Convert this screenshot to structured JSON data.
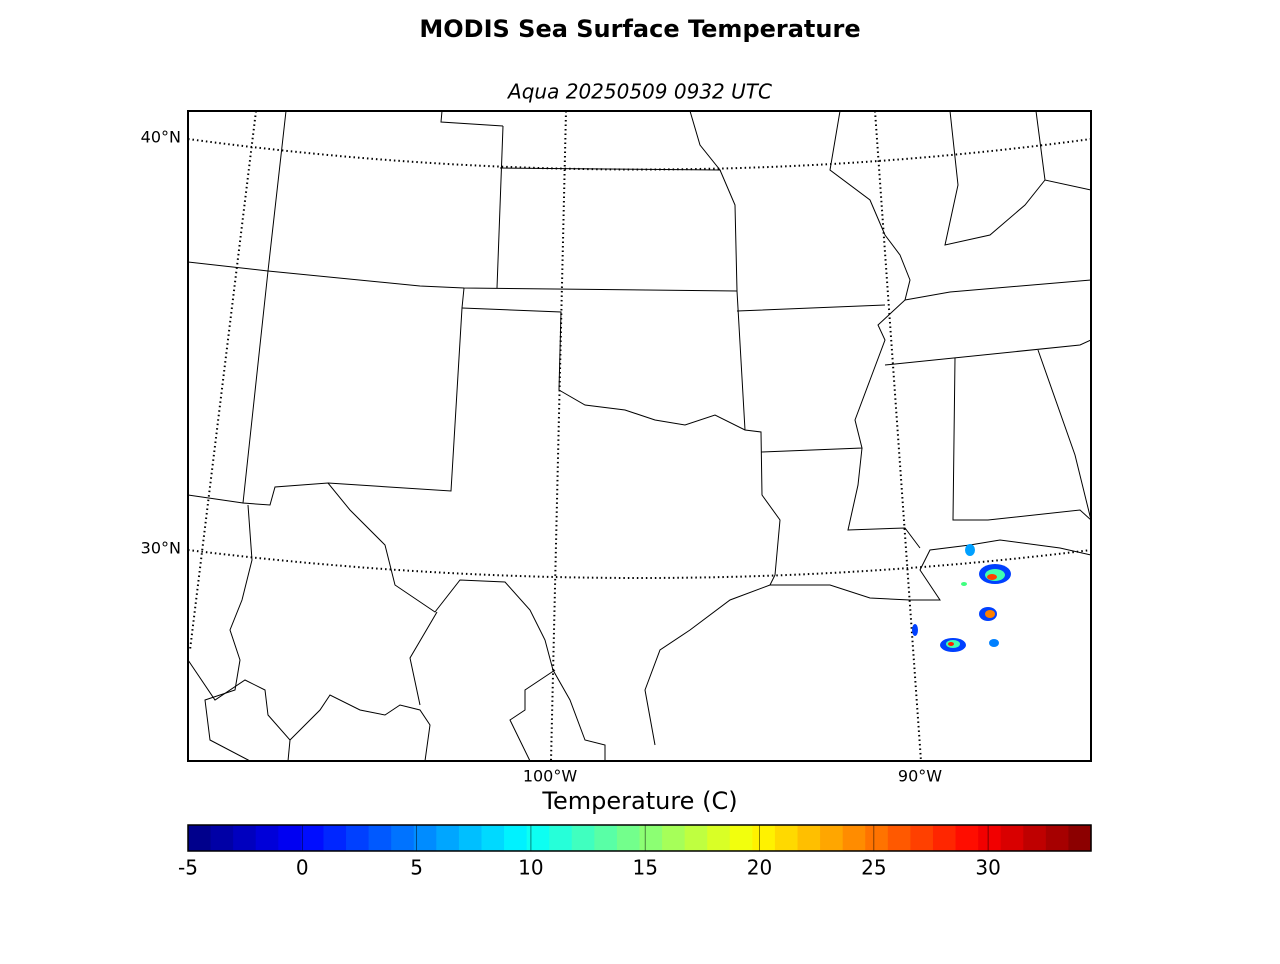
{
  "title": "MODIS Sea Surface Temperature",
  "subtitle": "Aqua 20250509 0932 UTC",
  "map": {
    "parallel_labels": [
      "40°N",
      "30°N"
    ],
    "meridian_labels": [
      "100°W",
      "90°W"
    ]
  },
  "colorbar": {
    "label": "Temperature (C)",
    "lim": [
      -5,
      34.5
    ],
    "ticks": [
      -5,
      0,
      5,
      10,
      15,
      20,
      25,
      30
    ],
    "colormap": "jet"
  }
}
